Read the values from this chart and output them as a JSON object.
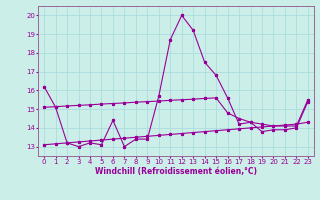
{
  "xlabel": "Windchill (Refroidissement éolien,°C)",
  "background_color": "#cceee8",
  "grid_color": "#aadddd",
  "line_color": "#990099",
  "spine_color": "#996699",
  "xlim": [
    -0.5,
    23.5
  ],
  "ylim": [
    12.5,
    20.5
  ],
  "yticks": [
    13,
    14,
    15,
    16,
    17,
    18,
    19,
    20
  ],
  "xticks": [
    0,
    1,
    2,
    3,
    4,
    5,
    6,
    7,
    8,
    9,
    10,
    11,
    12,
    13,
    14,
    15,
    16,
    17,
    18,
    19,
    20,
    21,
    22,
    23
  ],
  "series1_x": [
    0,
    1,
    2,
    3,
    4,
    5,
    6,
    7,
    8,
    9,
    10,
    11,
    12,
    13,
    14,
    15,
    16,
    17,
    18,
    19,
    20,
    21,
    22,
    23
  ],
  "series1_y": [
    16.2,
    15.1,
    13.2,
    13.0,
    13.2,
    13.1,
    14.4,
    13.0,
    13.4,
    13.4,
    15.7,
    18.7,
    20.0,
    19.2,
    17.5,
    16.8,
    15.6,
    14.2,
    14.3,
    13.8,
    13.9,
    13.9,
    14.0,
    15.4
  ],
  "series2_x": [
    0,
    1,
    2,
    3,
    4,
    5,
    6,
    7,
    8,
    9,
    10,
    11,
    12,
    13,
    14,
    15,
    16,
    17,
    18,
    19,
    20,
    21,
    22,
    23
  ],
  "series2_y": [
    13.1,
    13.15,
    13.2,
    13.25,
    13.3,
    13.35,
    13.4,
    13.45,
    13.5,
    13.55,
    13.6,
    13.65,
    13.7,
    13.75,
    13.8,
    13.85,
    13.9,
    13.95,
    14.0,
    14.05,
    14.1,
    14.15,
    14.2,
    14.3
  ],
  "series3_x": [
    0,
    1,
    2,
    3,
    4,
    5,
    6,
    7,
    8,
    9,
    10,
    11,
    12,
    13,
    14,
    15,
    16,
    17,
    18,
    19,
    20,
    21,
    22,
    23
  ],
  "series3_y": [
    15.1,
    15.13,
    15.17,
    15.2,
    15.23,
    15.27,
    15.3,
    15.33,
    15.37,
    15.4,
    15.43,
    15.47,
    15.5,
    15.53,
    15.57,
    15.6,
    14.8,
    14.5,
    14.3,
    14.2,
    14.1,
    14.1,
    14.1,
    15.5
  ],
  "tick_fontsize": 5.0,
  "xlabel_fontsize": 5.5
}
